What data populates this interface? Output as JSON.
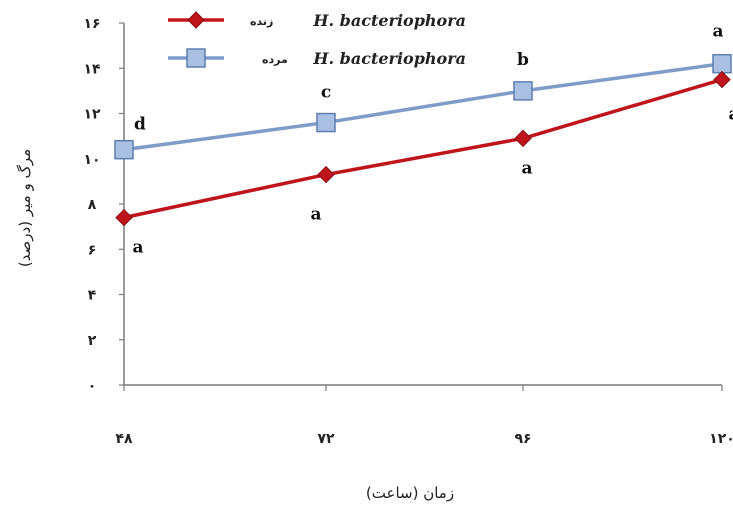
{
  "chart_data": {
    "type": "line",
    "categories": [
      "۴۸",
      "۷۲",
      "۹۶",
      "۱۲۰"
    ],
    "xlabel": "زمان (ساعت)",
    "ylabel": "مرگ و میر (درصد)",
    "ylim": [
      0,
      16
    ],
    "yticks": [
      0,
      2,
      4,
      6,
      8,
      10,
      12,
      14,
      16
    ],
    "ytick_labels": [
      "۰",
      "۲",
      "۴",
      "۶",
      "۸",
      "۱۰",
      "۱۲",
      "۱۴",
      "۱۶"
    ],
    "grid": false,
    "legend_position": "top-left",
    "series": [
      {
        "name": "H. bacteriophora",
        "name_suffix": "زنده",
        "color": "#c0141c",
        "marker": "diamond",
        "values": [
          7.4,
          9.3,
          10.9,
          13.5
        ],
        "letters": [
          "a",
          "a",
          "a",
          "a"
        ],
        "letter_side": "below"
      },
      {
        "name": "H. bacteriophora",
        "name_suffix": "مرده",
        "color": "#7f9cc9",
        "marker": "square",
        "values": [
          10.4,
          11.6,
          13.0,
          14.2
        ],
        "letters": [
          "d",
          "c",
          "b",
          "a"
        ],
        "letter_side": "above"
      }
    ]
  }
}
